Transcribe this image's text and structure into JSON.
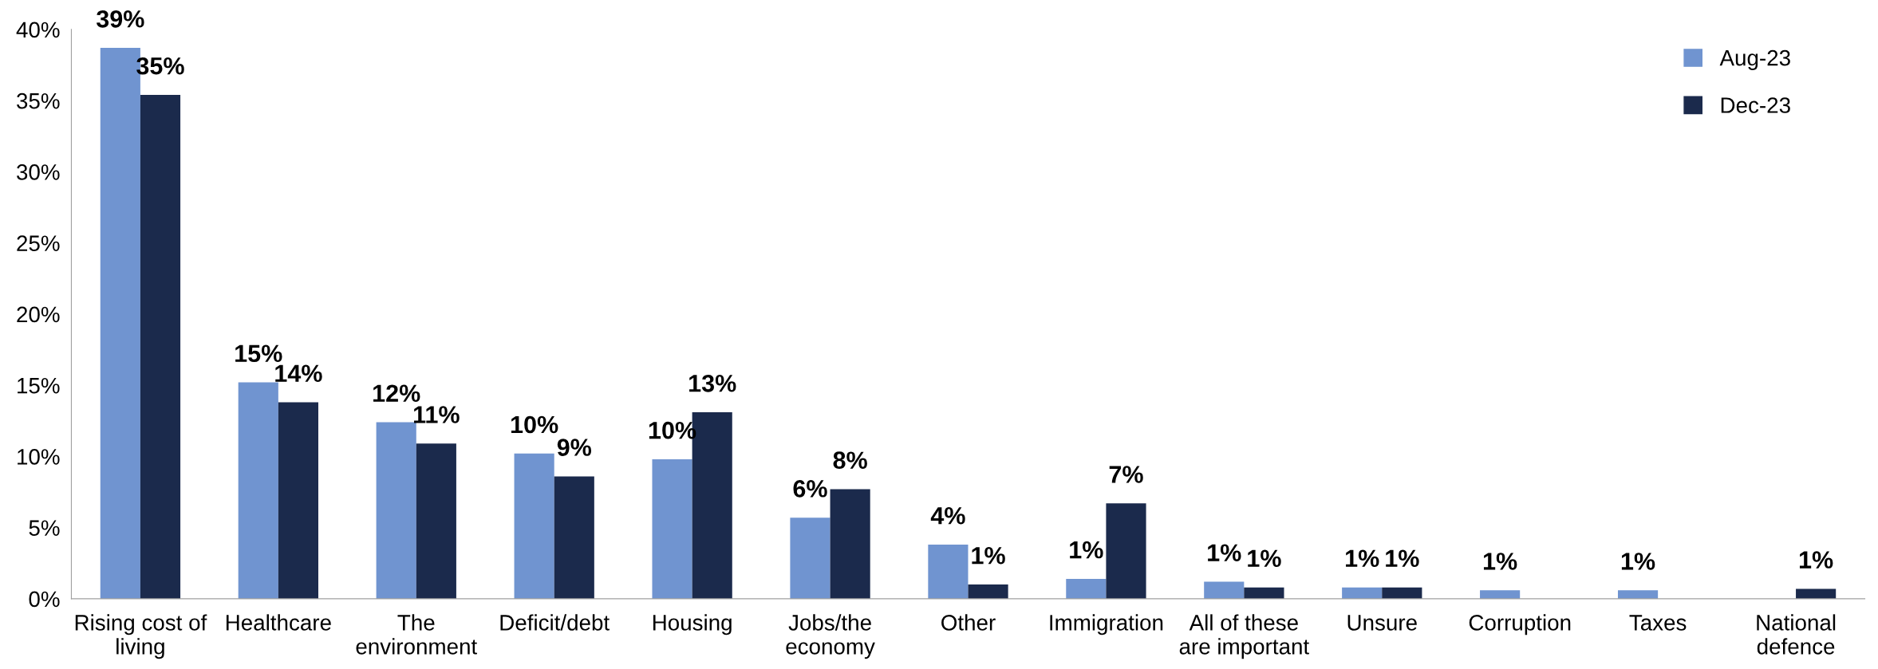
{
  "chart_data": {
    "type": "bar",
    "categories": [
      "Rising cost of living",
      "Healthcare",
      "The environment",
      "Deficit/debt",
      "Housing",
      "Jobs/the economy",
      "Other",
      "Immigration",
      "All of these are important",
      "Unsure",
      "Corruption",
      "Taxes",
      "National defence"
    ],
    "series": [
      {
        "name": "Aug-23",
        "color": "#7094d0",
        "values": [
          38.7,
          15.2,
          12.4,
          10.2,
          9.8,
          5.7,
          3.8,
          1.4,
          1.2,
          0.8,
          0.6,
          0.6,
          null
        ],
        "value_labels": [
          "39%",
          "15%",
          "12%",
          "10%",
          "10%",
          "6%",
          "4%",
          "1%",
          "1%",
          "1%",
          "1%",
          "1%",
          null
        ]
      },
      {
        "name": "Dec-23",
        "color": "#1b2a4c",
        "values": [
          35.4,
          13.8,
          10.9,
          8.6,
          13.1,
          7.7,
          1.0,
          6.7,
          0.8,
          0.8,
          null,
          null,
          0.7
        ],
        "value_labels": [
          "35%",
          "14%",
          "11%",
          "9%",
          "13%",
          "8%",
          "1%",
          "7%",
          "1%",
          "1%",
          null,
          null,
          "1%"
        ]
      }
    ],
    "ylim": [
      0,
      40
    ],
    "yticks": [
      {
        "value": 0,
        "label": "0%"
      },
      {
        "value": 5,
        "label": "5%"
      },
      {
        "value": 10,
        "label": "10%"
      },
      {
        "value": 15,
        "label": "15%"
      },
      {
        "value": 20,
        "label": "20%"
      },
      {
        "value": 25,
        "label": "25%"
      },
      {
        "value": 30,
        "label": "30%"
      },
      {
        "value": 35,
        "label": "35%"
      },
      {
        "value": 40,
        "label": "40%"
      }
    ],
    "grid": false,
    "legend": "top right"
  }
}
